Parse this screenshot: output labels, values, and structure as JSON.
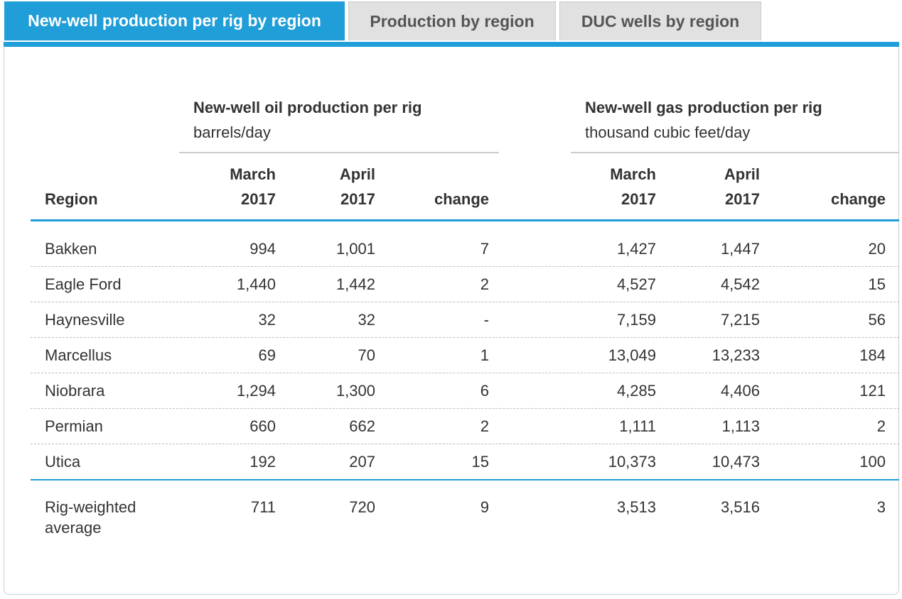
{
  "tabs": [
    {
      "label": "New-well production per rig by region",
      "active": true
    },
    {
      "label": "Production by region",
      "active": false
    },
    {
      "label": "DUC wells by region",
      "active": false
    }
  ],
  "groups": {
    "oil": {
      "title": "New-well oil production per rig",
      "unit": "barrels/day"
    },
    "gas": {
      "title": "New-well gas production per rig",
      "unit": "thousand cubic feet/day"
    }
  },
  "headers": {
    "region": "Region",
    "oil_march": [
      "March",
      "2017"
    ],
    "oil_april": [
      "April",
      "2017"
    ],
    "oil_change": "change",
    "gas_march": [
      "March",
      "2017"
    ],
    "gas_april": [
      "April",
      "2017"
    ],
    "gas_change": "change"
  },
  "rows": [
    {
      "region": "Bakken",
      "oil_march": "994",
      "oil_april": "1,001",
      "oil_change": "7",
      "gas_march": "1,427",
      "gas_april": "1,447",
      "gas_change": "20"
    },
    {
      "region": "Eagle Ford",
      "oil_march": "1,440",
      "oil_april": "1,442",
      "oil_change": "2",
      "gas_march": "4,527",
      "gas_april": "4,542",
      "gas_change": "15"
    },
    {
      "region": "Haynesville",
      "oil_march": "32",
      "oil_april": "32",
      "oil_change": "-",
      "gas_march": "7,159",
      "gas_april": "7,215",
      "gas_change": "56"
    },
    {
      "region": "Marcellus",
      "oil_march": "69",
      "oil_april": "70",
      "oil_change": "1",
      "gas_march": "13,049",
      "gas_april": "13,233",
      "gas_change": "184"
    },
    {
      "region": "Niobrara",
      "oil_march": "1,294",
      "oil_april": "1,300",
      "oil_change": "6",
      "gas_march": "4,285",
      "gas_april": "4,406",
      "gas_change": "121"
    },
    {
      "region": "Permian",
      "oil_march": "660",
      "oil_april": "662",
      "oil_change": "2",
      "gas_march": "1,111",
      "gas_april": "1,113",
      "gas_change": "2"
    },
    {
      "region": "Utica",
      "oil_march": "192",
      "oil_april": "207",
      "oil_change": "15",
      "gas_march": "10,373",
      "gas_april": "10,473",
      "gas_change": "100"
    }
  ],
  "average": {
    "region": [
      "Rig-weighted",
      "average"
    ],
    "oil_march": "711",
    "oil_april": "720",
    "oil_change": "9",
    "gas_march": "3,513",
    "gas_april": "3,516",
    "gas_change": "3"
  },
  "colors": {
    "accent": "#1f9ed8",
    "tab_inactive": "#e1e1e1",
    "text": "#333333"
  }
}
